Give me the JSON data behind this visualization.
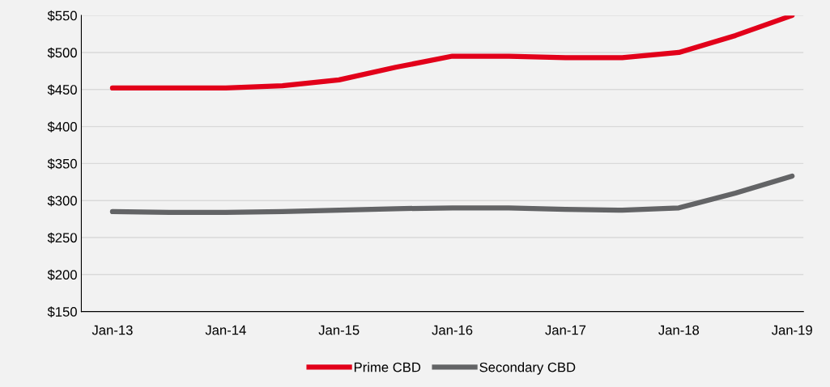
{
  "chart_data": {
    "type": "line",
    "categories": [
      "Jan-13",
      null,
      "Jan-14",
      null,
      "Jan-15",
      null,
      "Jan-16",
      null,
      "Jan-17",
      null,
      "Jan-18",
      null,
      "Jan-19"
    ],
    "series": [
      {
        "name": "Prime CBD",
        "color": "#e2001a",
        "values": [
          452,
          452,
          452,
          455,
          463,
          480,
          495,
          495,
          493,
          493,
          500,
          523,
          550
        ]
      },
      {
        "name": "Secondary CBD",
        "color": "#636466",
        "values": [
          285,
          284,
          284,
          285,
          287,
          289,
          290,
          290,
          288,
          287,
          290,
          310,
          333
        ]
      }
    ],
    "ylim": [
      150,
      550
    ],
    "yticks": [
      {
        "value": 150,
        "label": "$150"
      },
      {
        "value": 200,
        "label": "$200"
      },
      {
        "value": 250,
        "label": "$250"
      },
      {
        "value": 300,
        "label": "$300"
      },
      {
        "value": 350,
        "label": "$350"
      },
      {
        "value": 400,
        "label": "$400"
      },
      {
        "value": 450,
        "label": "$450"
      },
      {
        "value": 500,
        "label": "$500"
      },
      {
        "value": 550,
        "label": "$550"
      }
    ],
    "grid": "y",
    "legend": "bottom",
    "marker": "none",
    "line_style": "solid"
  }
}
